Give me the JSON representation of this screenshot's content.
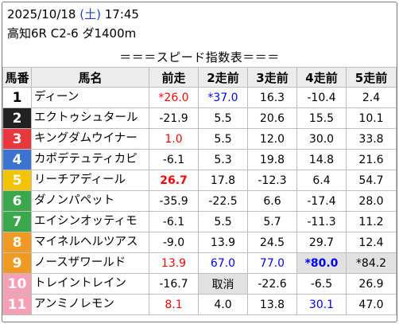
{
  "header": {
    "date": "2025/10/18",
    "dow": "(土)",
    "time": "17:45",
    "race_info": "高知6R C2-6 ダ1400m"
  },
  "banner": "＝＝＝スピード指数表＝＝＝",
  "columns": [
    "馬番",
    "馬名",
    "前走",
    "2走前",
    "3走前",
    "4走前",
    "5走前"
  ],
  "frame_colors": {
    "1": {
      "bg": "#ffffff",
      "fg": "#000000"
    },
    "2": {
      "bg": "#222222",
      "fg": "#ffffff"
    },
    "3": {
      "bg": "#e8383d",
      "fg": "#ffffff"
    },
    "4": {
      "bg": "#3a74d0",
      "fg": "#ffffff"
    },
    "5": {
      "bg": "#f2c400",
      "fg": "#ffffff"
    },
    "6": {
      "bg": "#3aa84a",
      "fg": "#ffffff"
    },
    "7": {
      "bg": "#f09a24",
      "fg": "#ffffff"
    },
    "8": {
      "bg": "#f5a0b4",
      "fg": "#ffffff"
    }
  },
  "rows": [
    {
      "num": "1",
      "frame": "1",
      "name": "ディーン",
      "cells": [
        {
          "v": "*26.0",
          "style": "red"
        },
        {
          "v": "*37.0",
          "style": "blue"
        },
        {
          "v": "16.3"
        },
        {
          "v": "-10.4"
        },
        {
          "v": "2.4"
        }
      ]
    },
    {
      "num": "2",
      "frame": "2",
      "name": "エクトゥシュタール",
      "cells": [
        {
          "v": "-21.9"
        },
        {
          "v": "5.5"
        },
        {
          "v": "20.6"
        },
        {
          "v": "15.5"
        },
        {
          "v": "10.1"
        }
      ]
    },
    {
      "num": "3",
      "frame": "3",
      "name": "キングダムウイナー",
      "cells": [
        {
          "v": "1.0",
          "style": "red"
        },
        {
          "v": "5.5"
        },
        {
          "v": "12.0"
        },
        {
          "v": "30.0"
        },
        {
          "v": "33.8"
        }
      ]
    },
    {
      "num": "4",
      "frame": "4",
      "name": "カポデテュティカピ",
      "cells": [
        {
          "v": "-6.1"
        },
        {
          "v": "5.3"
        },
        {
          "v": "19.8"
        },
        {
          "v": "14.8"
        },
        {
          "v": "21.6"
        }
      ]
    },
    {
      "num": "5",
      "frame": "5",
      "name": "リーチアディール",
      "cells": [
        {
          "v": "26.7",
          "style": "red bold"
        },
        {
          "v": "17.8"
        },
        {
          "v": "-12.3"
        },
        {
          "v": "6.4"
        },
        {
          "v": "54.7"
        }
      ]
    },
    {
      "num": "6",
      "frame": "6",
      "name": "ダノンパペット",
      "cells": [
        {
          "v": "-35.9"
        },
        {
          "v": "-22.5"
        },
        {
          "v": "6.6"
        },
        {
          "v": "-17.4"
        },
        {
          "v": "28.0"
        }
      ]
    },
    {
      "num": "7",
      "frame": "6",
      "name": "エイシンオッティモ",
      "cells": [
        {
          "v": "-6.1"
        },
        {
          "v": "5.5"
        },
        {
          "v": "5.7"
        },
        {
          "v": "-11.3"
        },
        {
          "v": "11.2"
        }
      ]
    },
    {
      "num": "8",
      "frame": "7",
      "name": "マイネルヘルツアス",
      "cells": [
        {
          "v": "-9.0"
        },
        {
          "v": "13.9"
        },
        {
          "v": "24.5"
        },
        {
          "v": "29.7"
        },
        {
          "v": "12.4"
        }
      ]
    },
    {
      "num": "9",
      "frame": "7",
      "name": "ノースザワールド",
      "cells": [
        {
          "v": "13.9",
          "style": "red"
        },
        {
          "v": "67.0",
          "style": "blue"
        },
        {
          "v": "77.0",
          "style": "blue"
        },
        {
          "v": "*80.0",
          "style": "blue bold gray"
        },
        {
          "v": "*84.2",
          "style": "gray"
        }
      ]
    },
    {
      "num": "10",
      "frame": "8",
      "name": "トレイントレイン",
      "cells": [
        {
          "v": "-16.7"
        },
        {
          "v": "取消",
          "style": "gray"
        },
        {
          "v": "-22.6"
        },
        {
          "v": "-6.5"
        },
        {
          "v": "26.9"
        }
      ]
    },
    {
      "num": "11",
      "frame": "8",
      "name": "アンミノレモン",
      "cells": [
        {
          "v": "8.1",
          "style": "red"
        },
        {
          "v": "4.0"
        },
        {
          "v": "13.8"
        },
        {
          "v": "30.1",
          "style": "blue"
        },
        {
          "v": "47.0"
        }
      ]
    }
  ]
}
